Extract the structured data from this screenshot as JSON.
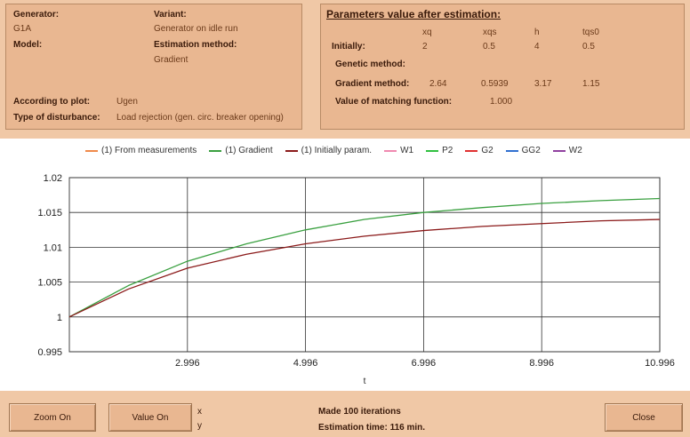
{
  "info": {
    "generator_label": "Generator:",
    "generator_value": "G1A",
    "variant_label": "Variant:",
    "variant_value": "Generator on idle run",
    "model_label": "Model:",
    "estimation_method_label": "Estimation method:",
    "estimation_method_value": "Gradient",
    "plot_label": "According to plot:",
    "plot_value": "Ugen",
    "disturbance_label": "Type of disturbance:",
    "disturbance_value": "Load rejection (gen. circ. breaker opening)"
  },
  "params": {
    "title": "Parameters value after estimation:",
    "headers": [
      "xq",
      "xqs",
      "h",
      "tqs0"
    ],
    "initially_label": "Initially:",
    "initially_values": [
      "2",
      "0.5",
      "4",
      "0.5"
    ],
    "genetic_label": "Genetic method:",
    "gradient_label": "Gradient method:",
    "gradient_values": [
      "2.64",
      "0.5939",
      "3.17",
      "1.15"
    ],
    "matching_label": "Value of matching function:",
    "matching_value": "1.000"
  },
  "chart_data": {
    "type": "line",
    "xlabel": "t",
    "ylabel": "",
    "xlim": [
      0.996,
      10.996
    ],
    "ylim": [
      0.995,
      1.02
    ],
    "x_ticks": [
      "2.996",
      "4.996",
      "6.996",
      "8.996",
      "10.996"
    ],
    "y_ticks": [
      "0.995",
      "1",
      "1.005",
      "1.01",
      "1.015",
      "1.02"
    ],
    "grid": true,
    "legend": [
      {
        "name": "(1) From measurements",
        "color": "#f08a4a"
      },
      {
        "name": "(1) Gradient",
        "color": "#3aa040"
      },
      {
        "name": "(1) Initially param.",
        "color": "#8b1a1a"
      },
      {
        "name": "W1",
        "color": "#f08ab0"
      },
      {
        "name": "P2",
        "color": "#30c040"
      },
      {
        "name": "G2",
        "color": "#e03030"
      },
      {
        "name": "GG2",
        "color": "#3070d0"
      },
      {
        "name": "W2",
        "color": "#9040a0"
      }
    ],
    "series": [
      {
        "name": "(1) Gradient",
        "color": "#3aa040",
        "x": [
          0.996,
          1.996,
          2.996,
          3.996,
          4.996,
          5.996,
          6.996,
          7.996,
          8.996,
          9.996,
          10.996
        ],
        "y": [
          1.0,
          1.0045,
          1.008,
          1.0105,
          1.0125,
          1.014,
          1.015,
          1.0157,
          1.0163,
          1.0167,
          1.017
        ]
      },
      {
        "name": "(1) Initially param.",
        "color": "#8b1a1a",
        "x": [
          0.996,
          1.996,
          2.996,
          3.996,
          4.996,
          5.996,
          6.996,
          7.996,
          8.996,
          9.996,
          10.996
        ],
        "y": [
          1.0,
          1.004,
          1.007,
          1.009,
          1.0105,
          1.0116,
          1.0124,
          1.013,
          1.0134,
          1.0138,
          1.014
        ]
      }
    ]
  },
  "bottom": {
    "zoom_button": "Zoom On",
    "value_button": "Value On",
    "x_label": "x",
    "y_label": "y",
    "iterations_text": "Made 100 iterations",
    "time_text": "Estimation time: 116 min.",
    "close_button": "Close"
  }
}
